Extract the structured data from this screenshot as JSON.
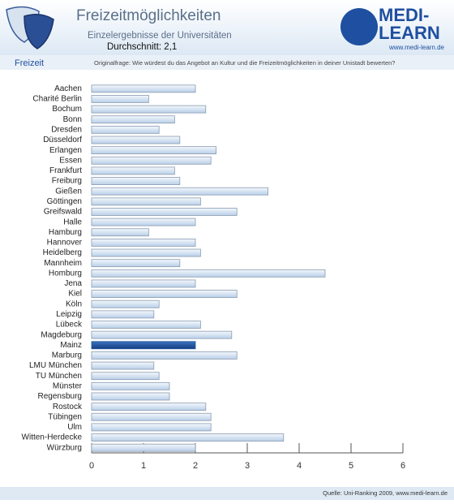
{
  "header": {
    "title": "Freizeitmöglichkeiten",
    "subtitle": "Einzelergebnisse der Universitäten",
    "average": "Durchschnitt: 2,1",
    "logo_top": "MEDI-",
    "logo_bottom": "LEARN",
    "logo_url": "www.medi-learn.de"
  },
  "section": "Freizeit",
  "question": "Originalfrage: Wie würdest du das Angebot an Kultur und die Freizeitmöglichkeiten in deiner Unistadt bewerten?",
  "source": "Quelle: Uni-Ranking 2009, www.medi-learn.de",
  "chart_data": {
    "type": "hbar",
    "categories": [
      "Aachen",
      "Charité  Berlin",
      "Bochum",
      "Bonn",
      "Dresden",
      "Düsseldorf",
      "Erlangen",
      "Essen",
      "Frankfurt",
      "Freiburg",
      "Gießen",
      "Göttingen",
      "Greifswald",
      "Halle",
      "Hamburg",
      "Hannover",
      "Heidelberg",
      "Mannheim",
      "Homburg",
      "Jena",
      "Kiel",
      "Köln",
      "Leipzig",
      "Lübeck",
      "Magdeburg",
      "Mainz",
      "Marburg",
      "LMU München",
      "TU München",
      "Münster",
      "Regensburg",
      "Rostock",
      "Tübingen",
      "Ulm",
      "Witten-Herdecke",
      "Würzburg"
    ],
    "values": [
      2.0,
      1.1,
      2.2,
      1.6,
      1.3,
      1.7,
      2.4,
      2.3,
      1.6,
      1.7,
      3.4,
      2.1,
      2.8,
      2.0,
      1.1,
      2.0,
      2.1,
      1.7,
      4.5,
      2.0,
      2.8,
      1.3,
      1.2,
      2.1,
      2.7,
      2.0,
      2.8,
      1.2,
      1.3,
      1.5,
      1.5,
      2.2,
      2.3,
      2.3,
      3.7,
      2.0
    ],
    "color": "#c9dcf0",
    "highlight_category": "Mainz",
    "highlight_color": "#1e55a0",
    "xlim": [
      0,
      6
    ],
    "xticks": [
      0,
      1,
      2,
      3,
      4,
      5,
      6
    ]
  }
}
